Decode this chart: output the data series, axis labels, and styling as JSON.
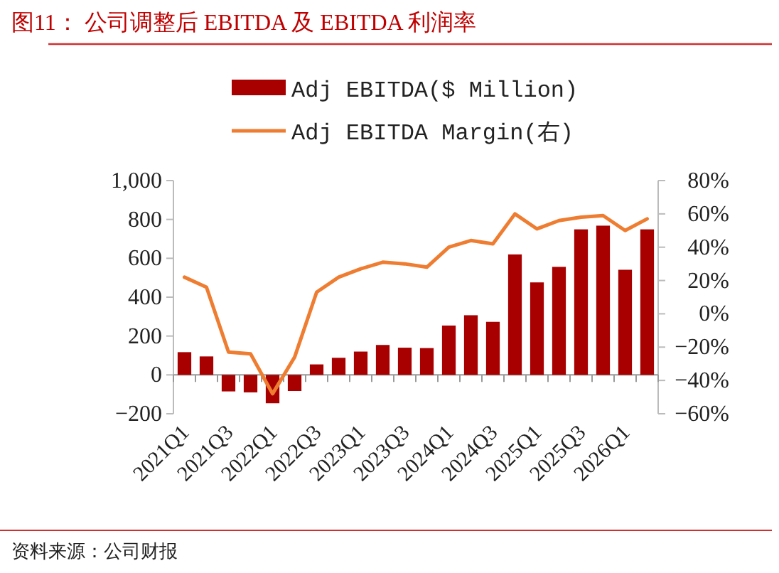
{
  "chart_data": {
    "type": "bar",
    "title": "图11：  公司调整后 EBITDA 及 EBITDA 利润率",
    "categories": [
      "2021Q1",
      null,
      "2021Q3",
      null,
      "2022Q1",
      null,
      "2022Q3",
      null,
      "2023Q1",
      null,
      "2023Q3",
      null,
      "2024Q1",
      null,
      "2024Q3",
      null,
      "2025Q1",
      null,
      "2025Q3",
      null,
      "2026Q1",
      null
    ],
    "series": [
      {
        "name": "Adj EBITDA($ Million)",
        "color": "#a80000",
        "values": [
          117,
          95,
          -85,
          -90,
          -146,
          -83,
          54,
          88,
          120,
          154,
          140,
          138,
          254,
          307,
          273,
          620,
          476,
          556,
          749,
          768,
          541,
          749
        ]
      },
      {
        "name": "Adj EBITDA Margin(右)",
        "type": "line",
        "axis": "y2",
        "color": "#ee7d31",
        "values": [
          22,
          16,
          -23,
          -24,
          -48,
          -26,
          13,
          22,
          27,
          31,
          30,
          28,
          40,
          44,
          42,
          60,
          51,
          56,
          58,
          59,
          50,
          57
        ]
      }
    ],
    "ylim": [
      -200,
      1000
    ],
    "yticks": [
      {
        "value": -200,
        "label": "−200"
      },
      0,
      200,
      400,
      600,
      800,
      {
        "value": 1000,
        "label": "1,000"
      }
    ],
    "y2lim": [
      -60,
      80
    ],
    "y2ticks": [
      {
        "value": -60,
        "label": "−60%"
      },
      {
        "value": -40,
        "label": "−40%"
      },
      {
        "value": -20,
        "label": "−20%"
      },
      {
        "value": 0,
        "label": "0%"
      },
      {
        "value": 20,
        "label": "20%"
      },
      {
        "value": 40,
        "label": "40%"
      },
      {
        "value": 60,
        "label": "60%"
      },
      {
        "value": 80,
        "label": "80%"
      }
    ],
    "legend": "top",
    "grid": false,
    "annotations": [
      "资料来源：公司财报"
    ]
  }
}
